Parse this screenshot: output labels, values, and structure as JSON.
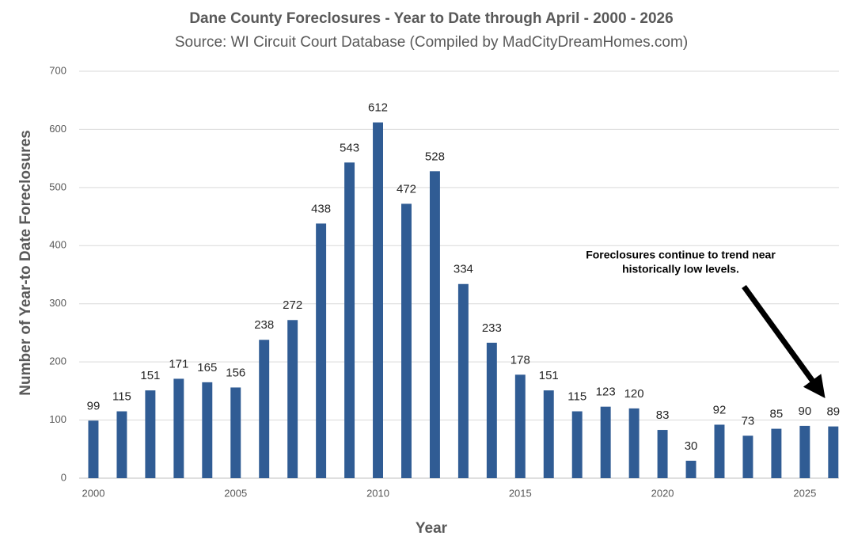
{
  "chart_data": {
    "type": "bar",
    "title": "Dane County Foreclosures - Year to Date through April - 2000 - 2026",
    "subtitle": "Source: WI Circuit Court Database (Compiled by MadCityDreamHomes.com)",
    "x_label": "Year",
    "y_label": "Number of Year-to Date Foreclosures",
    "x": [
      2000,
      2001,
      2002,
      2003,
      2004,
      2005,
      2006,
      2007,
      2008,
      2009,
      2010,
      2011,
      2012,
      2013,
      2014,
      2015,
      2016,
      2017,
      2018,
      2019,
      2020,
      2021,
      2022,
      2023,
      2024,
      2025,
      2026
    ],
    "values": [
      99,
      115,
      151,
      171,
      165,
      156,
      238,
      272,
      438,
      543,
      612,
      472,
      528,
      334,
      233,
      178,
      151,
      115,
      123,
      120,
      83,
      30,
      92,
      73,
      85,
      90,
      89
    ],
    "color": "#305c94",
    "xlim": [
      1999.5,
      2026.2
    ],
    "xticks": [
      2000,
      2005,
      2010,
      2015,
      2020,
      2025
    ],
    "ylim": [
      0,
      700
    ],
    "yticks": [
      0,
      100,
      200,
      300,
      400,
      500,
      600,
      700
    ],
    "grid": true,
    "annotation": [
      "Foreclosures continue to trend near",
      "historically low levels."
    ]
  }
}
